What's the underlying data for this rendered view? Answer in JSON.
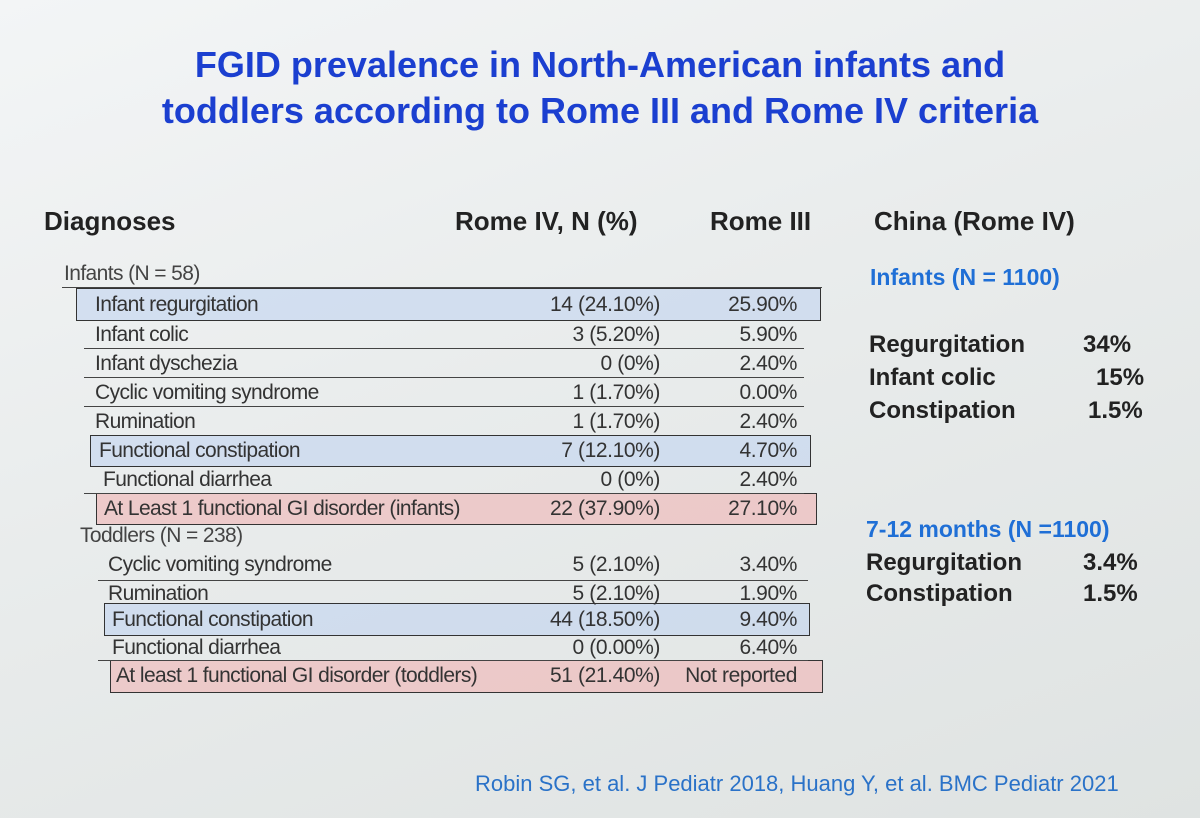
{
  "title_line1": "FGID prevalence in North-American infants and",
  "title_line2": "toddlers according to Rome III and Rome IV criteria",
  "headers": {
    "diagnoses": "Diagnoses",
    "rome4": "Rome IV, N (%)",
    "rome3": "Rome III",
    "china": "China (Rome IV)"
  },
  "infants": {
    "group_label": "Infants (N = 58)",
    "rows": [
      {
        "label": "Infant regurgitation",
        "rome4": "14 (24.10%)",
        "rome3": "25.90%"
      },
      {
        "label": "Infant colic",
        "rome4": "3 (5.20%)",
        "rome3": "5.90%"
      },
      {
        "label": "Infant dyschezia",
        "rome4": "0 (0%)",
        "rome3": "2.40%"
      },
      {
        "label": "Cyclic vomiting syndrome",
        "rome4": "1 (1.70%)",
        "rome3": "0.00%"
      },
      {
        "label": "Rumination",
        "rome4": "1 (1.70%)",
        "rome3": "2.40%"
      },
      {
        "label": "Functional constipation",
        "rome4": "7 (12.10%)",
        "rome3": "4.70%"
      },
      {
        "label": "Functional diarrhea",
        "rome4": "0 (0%)",
        "rome3": "2.40%"
      },
      {
        "label": "At Least 1 functional GI disorder (infants)",
        "rome4": "22 (37.90%)",
        "rome3": "27.10%"
      }
    ]
  },
  "toddlers": {
    "group_label": "Toddlers (N = 238)",
    "rows": [
      {
        "label": "Cyclic vomiting syndrome",
        "rome4": "5 (2.10%)",
        "rome3": "3.40%"
      },
      {
        "label": "Rumination",
        "rome4": "5 (2.10%)",
        "rome3": "1.90%"
      },
      {
        "label": "Functional constipation",
        "rome4": "44 (18.50%)",
        "rome3": "9.40%"
      },
      {
        "label": "Functional diarrhea",
        "rome4": "0 (0.00%)",
        "rome3": "6.40%"
      },
      {
        "label": "At least 1 functional GI disorder (toddlers)",
        "rome4": "51 (21.40%)",
        "rome3": "Not reported"
      }
    ]
  },
  "china": {
    "infants_title": "Infants (N = 1100)",
    "infants_items": [
      {
        "label": "Regurgitation",
        "value": "34%"
      },
      {
        "label": "Infant colic",
        "value": "15%"
      },
      {
        "label": "Constipation",
        "value": "1.5%"
      }
    ],
    "months_title": "7-12 months (N =1100)",
    "months_items": [
      {
        "label": "Regurgitation",
        "value": "3.4%"
      },
      {
        "label": "Constipation",
        "value": "1.5%"
      }
    ]
  },
  "citation": "Robin SG, et al. J Pediatr 2018, Huang Y, et al. BMC Pediatr 2021",
  "colors": {
    "title": "#1b3fd0",
    "china_subtitle": "#1f6fd6",
    "citation": "#2a72c8",
    "highlight_blue": "#bed2f0",
    "highlight_red": "#f0b4b4"
  }
}
